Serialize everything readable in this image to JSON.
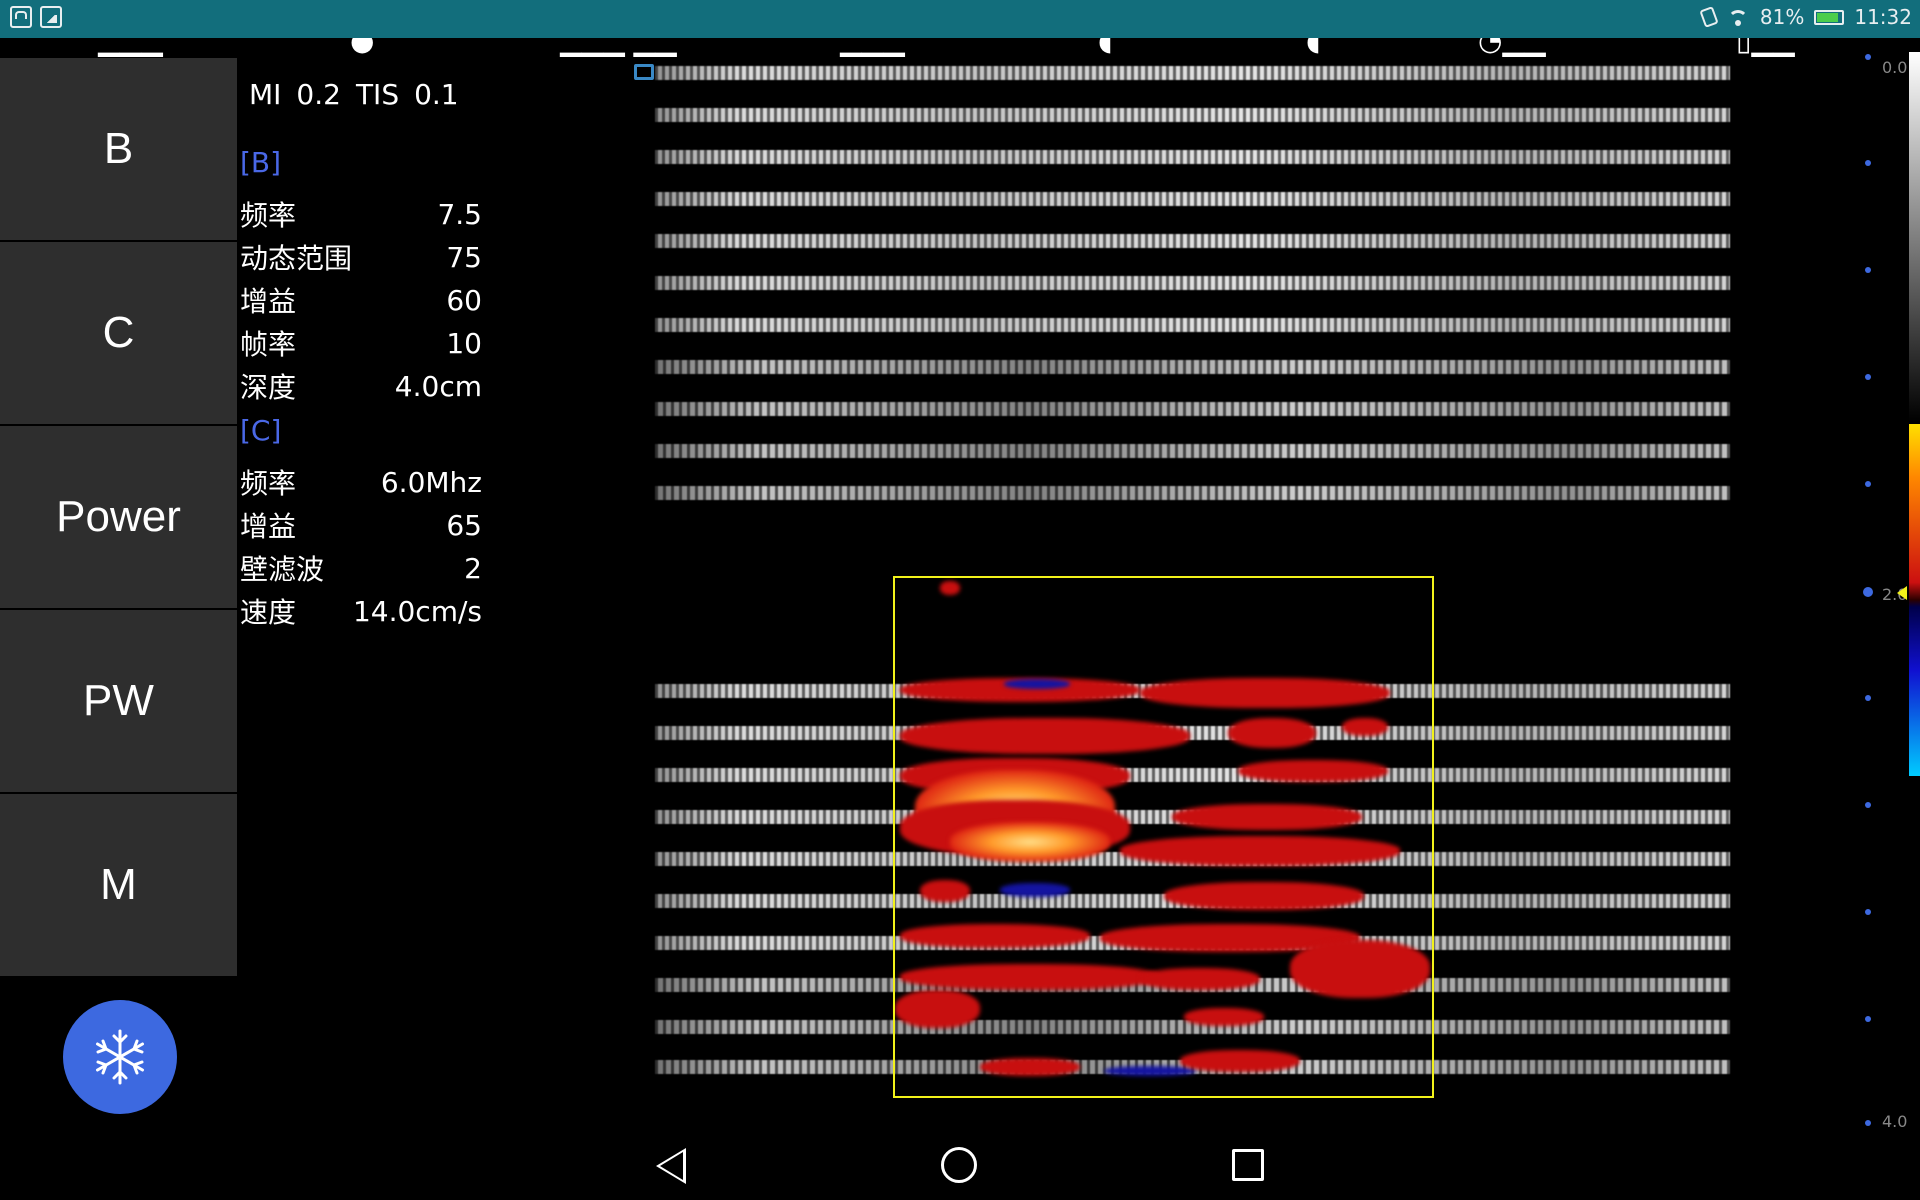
{
  "status_bar": {
    "battery": "81%",
    "time": "11:32",
    "battery_level": 0.81,
    "icons": [
      "notification-car-icon",
      "notification-image-icon",
      "vibrate-icon",
      "wifi-icon",
      "battery-icon"
    ]
  },
  "modes": [
    {
      "label": "B"
    },
    {
      "label": "C"
    },
    {
      "label": "Power"
    },
    {
      "label": "PW"
    },
    {
      "label": "M"
    }
  ],
  "freeze_button": {
    "icon": "snowflake-icon",
    "color": "#3d69e0"
  },
  "safety": {
    "mi_label": "MI",
    "mi_value": "0.2",
    "tis_label": "TIS",
    "tis_value": "0.1"
  },
  "b_section": {
    "title": "[B]",
    "rows": [
      {
        "label": "频率",
        "value": "7.5"
      },
      {
        "label": "动态范围",
        "value": "75"
      },
      {
        "label": "增益",
        "value": "60"
      },
      {
        "label": "帧率",
        "value": "10"
      },
      {
        "label": "深度",
        "value": "4.0cm"
      }
    ]
  },
  "c_section": {
    "title": "[C]",
    "rows": [
      {
        "label": "频率",
        "value": "6.0Mhz"
      },
      {
        "label": "增益",
        "value": "65"
      },
      {
        "label": "壁滤波",
        "value": "2"
      },
      {
        "label": "速度",
        "value": "14.0cm/s"
      }
    ]
  },
  "depth_scale": {
    "top": "0.0",
    "mid": "2.0",
    "bottom": "4.0"
  },
  "colors": {
    "accent": "#3d69e0",
    "roi": "#f2f21a",
    "status_bar": "#126e7c",
    "section_title": "#4a68e6"
  },
  "nav": {
    "back_icon": "back-triangle-icon",
    "home_icon": "home-circle-icon",
    "recent_icon": "recent-square-icon"
  }
}
